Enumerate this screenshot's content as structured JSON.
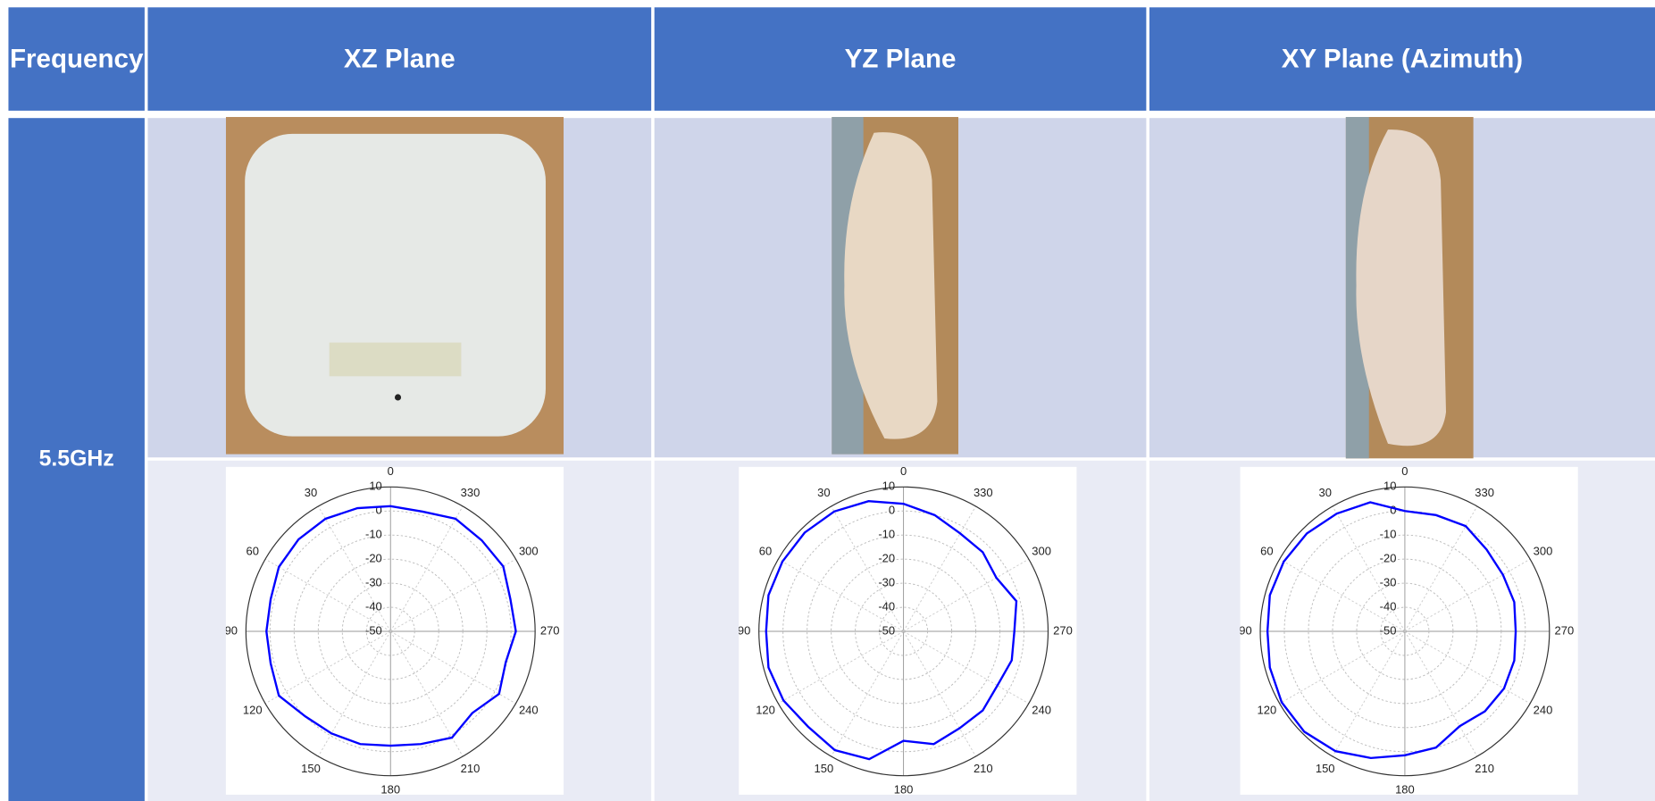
{
  "header": {
    "columns": [
      "Frequency",
      "XZ Plane",
      "YZ Plane",
      "XY Plane (Azimuth)"
    ]
  },
  "row": {
    "label": "5.5GHz"
  },
  "chart_data": [
    {
      "type": "polar",
      "theta_zero": "top",
      "theta_direction": "counterclockwise",
      "grid": true,
      "color": "#0000ff",
      "theta": [
        0,
        15,
        30,
        45,
        60,
        75,
        90,
        105,
        120,
        135,
        150,
        165,
        180,
        195,
        210,
        225,
        240,
        255,
        270,
        285,
        300,
        315,
        330,
        345
      ],
      "values": [
        2,
        3,
        4,
        4,
        3.5,
        1.5,
        1.5,
        1.5,
        3.5,
        0,
        -1,
        -1.5,
        -2.5,
        -1.5,
        1,
        -2,
        2,
        -0.5,
        2,
        1.5,
        4,
        3.5,
        4,
        1.5
      ],
      "rlim": [
        -50,
        10
      ],
      "rticks": [
        10,
        0,
        -10,
        -20,
        -30,
        -40,
        -50
      ],
      "thetaticks": [
        0,
        30,
        60,
        90,
        120,
        150,
        180,
        210,
        240,
        270,
        300,
        330
      ]
    },
    {
      "type": "polar",
      "theta_zero": "top",
      "theta_direction": "counterclockwise",
      "grid": true,
      "color": "#0000ff",
      "theta": [
        0,
        15,
        30,
        45,
        60,
        75,
        90,
        105,
        120,
        135,
        150,
        165,
        180,
        195,
        210,
        225,
        240,
        255,
        270,
        285,
        300,
        315,
        330,
        345
      ],
      "values": [
        3,
        6,
        7.5,
        8,
        8,
        8,
        7,
        8,
        7.5,
        6,
        7,
        5,
        -4.5,
        -1.5,
        -3.5,
        -3.5,
        -5,
        -3.5,
        -4,
        -1.5,
        -5.5,
        -3.5,
        -3,
        0
      ],
      "rlim": [
        -50,
        10
      ],
      "rticks": [
        10,
        0,
        -10,
        -20,
        -30,
        -40,
        -50
      ],
      "thetaticks": [
        0,
        30,
        60,
        90,
        120,
        150,
        180,
        210,
        240,
        270,
        300,
        330
      ]
    },
    {
      "type": "polar",
      "theta_zero": "top",
      "theta_direction": "counterclockwise",
      "grid": true,
      "color": "#0000ff",
      "theta": [
        0,
        15,
        30,
        45,
        60,
        75,
        90,
        105,
        120,
        135,
        150,
        165,
        180,
        195,
        210,
        225,
        240,
        255,
        270,
        285,
        300,
        315,
        330,
        345
      ],
      "values": [
        0,
        5.5,
        6.5,
        7.5,
        8,
        8,
        7,
        8,
        9,
        9,
        7.5,
        4.5,
        1.5,
        0,
        -4.5,
        -3,
        -2.5,
        -3,
        -4,
        -3,
        -3,
        -2,
        0.5,
        0
      ],
      "rlim": [
        -50,
        10
      ],
      "rticks": [
        10,
        0,
        -10,
        -20,
        -30,
        -40,
        -50
      ],
      "thetaticks": [
        0,
        30,
        60,
        90,
        120,
        150,
        180,
        210,
        240,
        270,
        300,
        330
      ]
    }
  ]
}
